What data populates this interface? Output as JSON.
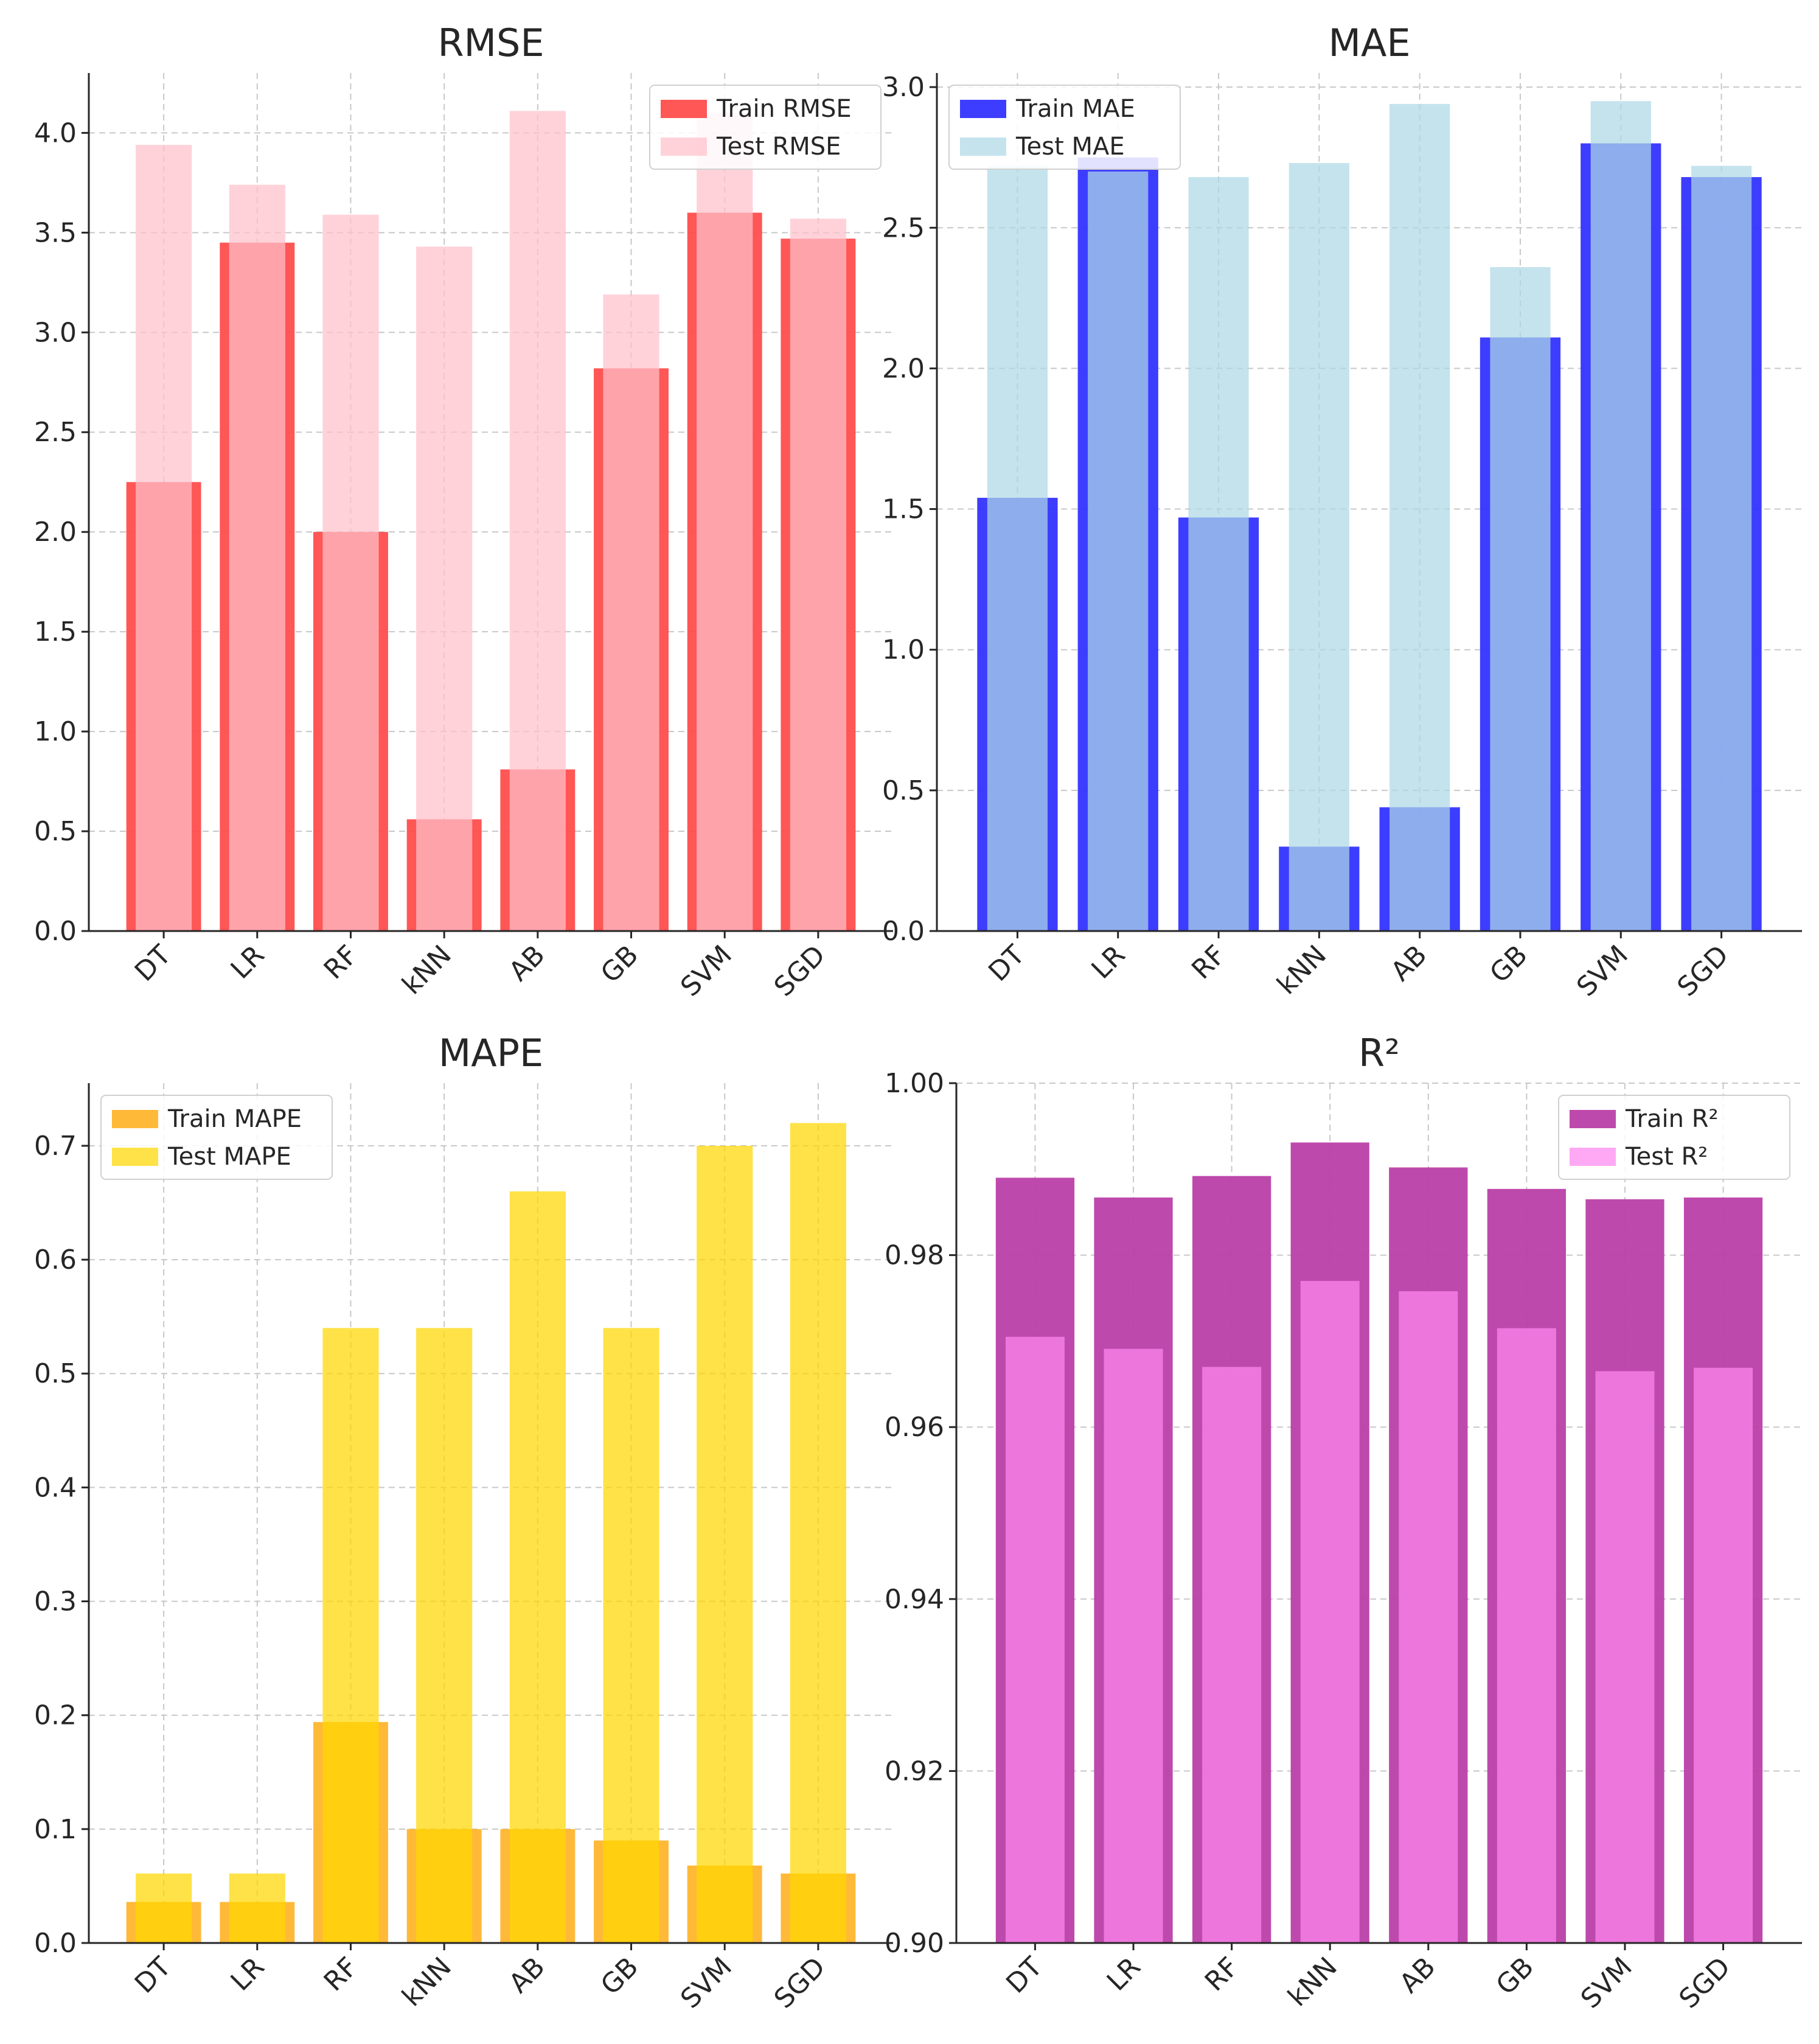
{
  "chart_data": [
    {
      "type": "bar",
      "title": "RMSE",
      "categories": [
        "DT",
        "LR",
        "RF",
        "kNN",
        "AB",
        "GB",
        "SVM",
        "SGD"
      ],
      "ylim": [
        0,
        4.3
      ],
      "yticks": [
        "0.0",
        "0.5",
        "1.0",
        "1.5",
        "2.0",
        "2.5",
        "3.0",
        "3.5",
        "4.0"
      ],
      "legend_position": "top-right",
      "series": [
        {
          "name": "Train RMSE",
          "role": "train",
          "color": "#ff4d4d",
          "values": [
            2.25,
            3.45,
            2.0,
            0.56,
            0.81,
            2.82,
            3.6,
            3.47
          ]
        },
        {
          "name": "Test RMSE",
          "role": "test",
          "color": "#ffc0cb",
          "values": [
            3.94,
            3.74,
            3.59,
            3.43,
            4.11,
            3.19,
            4.1,
            3.57
          ]
        }
      ]
    },
    {
      "type": "bar",
      "title": "MAE",
      "categories": [
        "DT",
        "LR",
        "RF",
        "kNN",
        "AB",
        "GB",
        "SVM",
        "SGD"
      ],
      "ylim": [
        0,
        3.05
      ],
      "yticks": [
        "0.0",
        "0.5",
        "1.0",
        "1.5",
        "2.0",
        "2.5",
        "3.0"
      ],
      "legend_position": "top-left",
      "series": [
        {
          "name": "Train MAE",
          "role": "train",
          "color": "#3333ff",
          "values": [
            1.54,
            2.75,
            1.47,
            0.3,
            0.44,
            2.11,
            2.8,
            2.68
          ]
        },
        {
          "name": "Test MAE",
          "role": "test",
          "color": "#add8e6",
          "values": [
            2.72,
            2.7,
            2.68,
            2.73,
            2.94,
            2.36,
            2.95,
            2.72
          ]
        }
      ]
    },
    {
      "type": "bar",
      "title": "MAPE",
      "categories": [
        "DT",
        "LR",
        "RF",
        "kNN",
        "AB",
        "GB",
        "SVM",
        "SGD"
      ],
      "ylim": [
        0,
        0.755
      ],
      "yticks": [
        "0.0",
        "0.1",
        "0.2",
        "0.3",
        "0.4",
        "0.5",
        "0.6",
        "0.7"
      ],
      "legend_position": "top-left",
      "series": [
        {
          "name": "Train MAPE",
          "role": "train",
          "color": "#ffb52e",
          "values": [
            0.036,
            0.036,
            0.194,
            0.1,
            0.1,
            0.09,
            0.068,
            0.061
          ]
        },
        {
          "name": "Test MAPE",
          "role": "test",
          "color": "#ffd700",
          "values": [
            0.061,
            0.061,
            0.54,
            0.54,
            0.66,
            0.54,
            0.7,
            0.72
          ]
        }
      ]
    },
    {
      "type": "bar",
      "title": "R²",
      "categories": [
        "DT",
        "LR",
        "RF",
        "kNN",
        "AB",
        "GB",
        "SVM",
        "SGD"
      ],
      "ylim": [
        0.9,
        1.0
      ],
      "yticks": [
        "0.90",
        "0.92",
        "0.94",
        "0.96",
        "0.98",
        "1.00"
      ],
      "legend_position": "top-right",
      "series": [
        {
          "name": "Train R²",
          "role": "train",
          "color": "#bb3fa8",
          "values": [
            0.989,
            0.9867,
            0.9892,
            0.9931,
            0.9902,
            0.9877,
            0.9865,
            0.9867
          ]
        },
        {
          "name": "Test R²",
          "role": "test",
          "color": "#ff88f0",
          "values": [
            0.9705,
            0.9691,
            0.967,
            0.977,
            0.9758,
            0.9715,
            0.9665,
            0.9669
          ]
        }
      ]
    }
  ]
}
